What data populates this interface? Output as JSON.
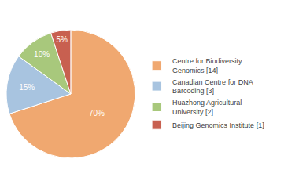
{
  "chart_data": {
    "type": "pie",
    "categories": [
      "Centre for Biodiversity\nGenomics [14]",
      "Canadian Centre for DNA\nBarcoding [3]",
      "Huazhong Agricultural\nUniversity [2]",
      "Beijing Genomics Institute [1]"
    ],
    "values": [
      70,
      15,
      10,
      5
    ],
    "value_labels": [
      "70%",
      "15%",
      "10%",
      "5%"
    ],
    "colors": [
      "#f0a870",
      "#a8c4e0",
      "#a8c87c",
      "#c86050"
    ],
    "data_labels": true,
    "legend": "right"
  }
}
